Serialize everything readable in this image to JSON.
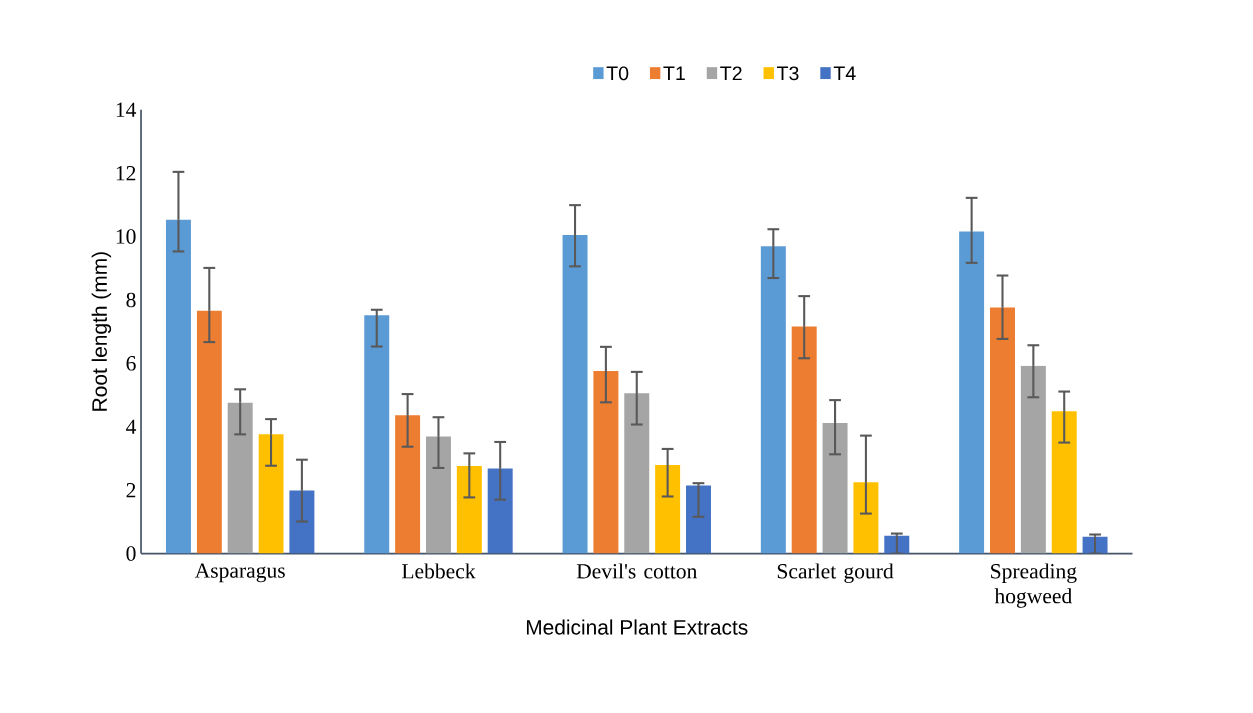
{
  "chart_data": {
    "type": "bar",
    "xlabel": "Medicinal Plant Extracts",
    "ylabel": "Root length (mm)",
    "categories": [
      "Asparagus",
      "Lebbeck",
      "Devil's cotton",
      "Scarlet gourd",
      "Spreading hogweed"
    ],
    "series": [
      {
        "name": "T0",
        "color": "#5b9bd5",
        "values": [
          10.53,
          7.52,
          10.05,
          9.69,
          10.16
        ],
        "errors": [
          [
            9.53,
            12.04
          ],
          [
            6.53,
            7.69
          ],
          [
            9.06,
            10.99
          ],
          [
            8.69,
            10.23
          ],
          [
            9.17,
            11.22
          ]
        ]
      },
      {
        "name": "T1",
        "color": "#ed7d31",
        "values": [
          7.66,
          4.36,
          5.76,
          7.16,
          7.76
        ],
        "errors": [
          [
            6.67,
            9.01
          ],
          [
            3.37,
            5.03
          ],
          [
            4.77,
            6.52
          ],
          [
            6.16,
            8.12
          ],
          [
            6.77,
            8.77
          ]
        ]
      },
      {
        "name": "T2",
        "color": "#a5a5a5",
        "values": [
          4.76,
          3.69,
          5.06,
          4.12,
          5.92
        ],
        "errors": [
          [
            3.76,
            5.18
          ],
          [
            2.7,
            4.3
          ],
          [
            4.07,
            5.73
          ],
          [
            3.13,
            4.84
          ],
          [
            4.93,
            6.57
          ]
        ]
      },
      {
        "name": "T3",
        "color": "#ffc000",
        "values": [
          3.76,
          2.76,
          2.79,
          2.25,
          4.49
        ],
        "errors": [
          [
            2.77,
            4.24
          ],
          [
            1.77,
            3.16
          ],
          [
            1.8,
            3.3
          ],
          [
            1.26,
            3.72
          ],
          [
            3.5,
            5.11
          ]
        ]
      },
      {
        "name": "T4",
        "color": "#4472c4",
        "values": [
          1.99,
          2.68,
          2.15,
          0.56,
          0.53
        ],
        "errors": [
          [
            1.01,
            2.96
          ],
          [
            1.7,
            3.52
          ],
          [
            1.16,
            2.22
          ],
          [
            0,
            0.63
          ],
          [
            0,
            0.6
          ]
        ]
      }
    ],
    "ylim": [
      0,
      14
    ],
    "yticks": [
      0,
      2,
      4,
      6,
      8,
      10,
      12,
      14
    ],
    "legend": "top"
  }
}
